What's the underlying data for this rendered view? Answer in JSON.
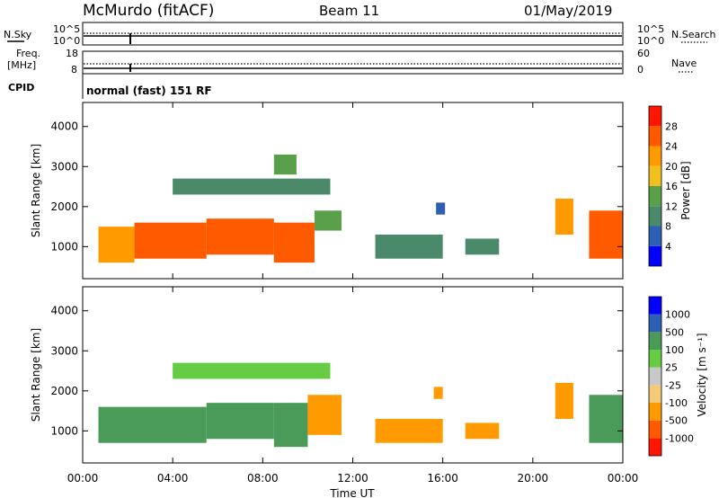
{
  "header": {
    "station": "McMurdo (fitACF)",
    "beam": "Beam 11",
    "date": "01/May/2019"
  },
  "status_panel": {
    "nsky_label": "N.Sky",
    "nsearch_label": "N.Search",
    "noise_ticks_left": [
      "10^5",
      "10^0"
    ],
    "noise_ticks_right": [
      "10^5",
      "10^0"
    ],
    "freq_label_1": "Freq.",
    "freq_label_2": "[MHz]",
    "freq_ticks": [
      "18",
      "8"
    ],
    "nave_label": "Nave",
    "nave_ticks": [
      "60",
      "0"
    ],
    "cpid_label": "CPID",
    "cpid_text": "normal (fast) 151 RF"
  },
  "colors": {
    "power": [
      "#0000ff",
      "#2f5fb5",
      "#4a8a6a",
      "#5aa04a",
      "#f0c020",
      "#ff9a00",
      "#ff5a00",
      "#ff1500"
    ],
    "velocity": [
      "#ff1500",
      "#ff5a00",
      "#ff9a00",
      "#f3c97a",
      "#c8c8c8",
      "#66cc44",
      "#4a9a5a",
      "#2f5fb5",
      "#0000ff"
    ]
  },
  "chart_data": [
    {
      "type": "heatmap",
      "title": "Power",
      "ylabel": "Slant Range [km]",
      "ylim": [
        200,
        4600
      ],
      "xlim": [
        "00:00",
        "24:00"
      ],
      "colorbar_label": "Power [dB]",
      "colorbar_ticks": [
        "4",
        "8",
        "12",
        "16",
        "20",
        "24",
        "28"
      ],
      "y_ticks": [
        "1000",
        "2000",
        "3000",
        "4000"
      ],
      "regions": [
        {
          "t0": 0.7,
          "t1": 2.3,
          "r0": 600,
          "r1": 1500,
          "value": 22
        },
        {
          "t0": 2.3,
          "t1": 5.5,
          "r0": 700,
          "r1": 1600,
          "value": 26
        },
        {
          "t0": 5.5,
          "t1": 8.5,
          "r0": 800,
          "r1": 1700,
          "value": 24
        },
        {
          "t0": 8.5,
          "t1": 10.3,
          "r0": 600,
          "r1": 1600,
          "value": 26
        },
        {
          "t0": 10.3,
          "t1": 11.5,
          "r0": 1400,
          "r1": 1900,
          "value": 14
        },
        {
          "t0": 4.0,
          "t1": 11.0,
          "r0": 2300,
          "r1": 2700,
          "value": 8
        },
        {
          "t0": 8.5,
          "t1": 9.5,
          "r0": 2800,
          "r1": 3300,
          "value": 12
        },
        {
          "t0": 13.0,
          "t1": 16.0,
          "r0": 700,
          "r1": 1300,
          "value": 10
        },
        {
          "t0": 15.7,
          "t1": 16.1,
          "r0": 1800,
          "r1": 2100,
          "value": 6
        },
        {
          "t0": 17.0,
          "t1": 18.5,
          "r0": 800,
          "r1": 1200,
          "value": 8
        },
        {
          "t0": 21.0,
          "t1": 21.8,
          "r0": 1300,
          "r1": 2200,
          "value": 20
        },
        {
          "t0": 22.5,
          "t1": 24.0,
          "r0": 700,
          "r1": 1900,
          "value": 24
        }
      ]
    },
    {
      "type": "heatmap",
      "title": "Velocity",
      "ylabel": "Slant Range [km]",
      "xlabel": "Time UT",
      "ylim": [
        200,
        4600
      ],
      "xlim": [
        "00:00",
        "24:00"
      ],
      "colorbar_label": "Velocity [m s⁻¹]",
      "colorbar_ticks": [
        "-1000",
        "-500",
        "-100",
        "-25",
        "25",
        "100",
        "500",
        "1000"
      ],
      "y_ticks": [
        "1000",
        "2000",
        "3000",
        "4000"
      ],
      "x_ticks": [
        "00:00",
        "04:00",
        "08:00",
        "12:00",
        "16:00",
        "20:00",
        "00:00"
      ],
      "regions": [
        {
          "t0": 0.7,
          "t1": 5.5,
          "r0": 700,
          "r1": 1600,
          "value": 150
        },
        {
          "t0": 5.5,
          "t1": 8.5,
          "r0": 800,
          "r1": 1700,
          "value": 200
        },
        {
          "t0": 8.5,
          "t1": 10.0,
          "r0": 600,
          "r1": 1700,
          "value": 300
        },
        {
          "t0": 10.0,
          "t1": 11.5,
          "r0": 900,
          "r1": 1900,
          "value": -150
        },
        {
          "t0": 4.0,
          "t1": 11.0,
          "r0": 2300,
          "r1": 2700,
          "value": 50
        },
        {
          "t0": 13.0,
          "t1": 16.0,
          "r0": 700,
          "r1": 1300,
          "value": -200
        },
        {
          "t0": 15.6,
          "t1": 16.0,
          "r0": 1800,
          "r1": 2100,
          "value": -300
        },
        {
          "t0": 17.0,
          "t1": 18.5,
          "r0": 800,
          "r1": 1200,
          "value": -150
        },
        {
          "t0": 21.0,
          "t1": 21.8,
          "r0": 1300,
          "r1": 2200,
          "value": -250
        },
        {
          "t0": 22.5,
          "t1": 24.0,
          "r0": 700,
          "r1": 1900,
          "value": 200
        }
      ]
    }
  ]
}
